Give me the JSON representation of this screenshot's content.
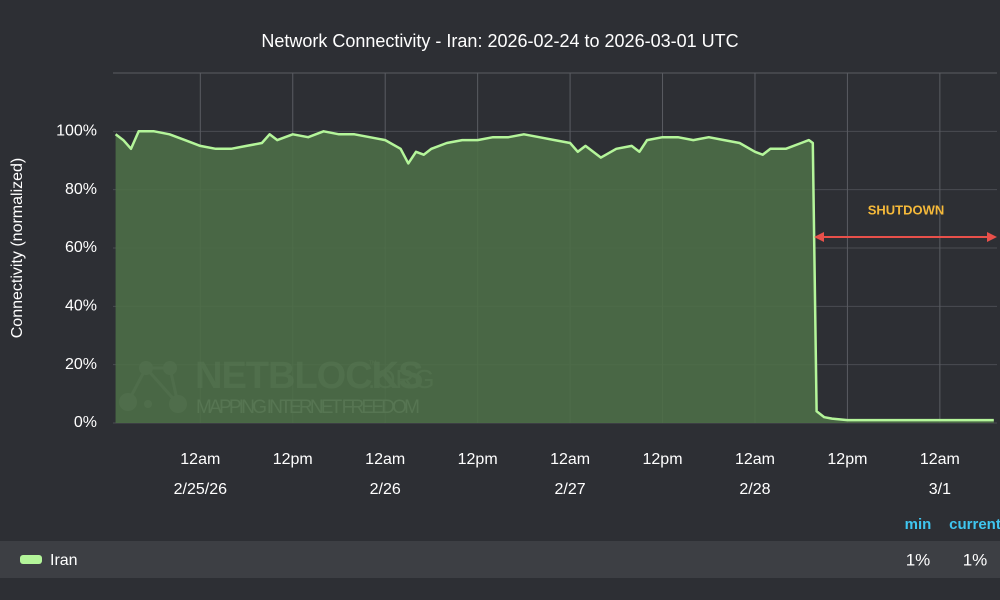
{
  "chart_data": {
    "type": "area",
    "title": "Network Connectivity - Iran: 2026-02-24 to 2026-03-01 UTC",
    "y_label": "Connectivity (normalized)",
    "x": [
      "2026-02-24T13:00",
      "2026-02-24T14:00",
      "2026-02-24T15:00",
      "2026-02-24T16:00",
      "2026-02-24T18:00",
      "2026-02-24T20:00",
      "2026-02-24T22:00",
      "2026-02-25T00:00",
      "2026-02-25T02:00",
      "2026-02-25T04:00",
      "2026-02-25T06:00",
      "2026-02-25T08:00",
      "2026-02-25T09:00",
      "2026-02-25T10:00",
      "2026-02-25T12:00",
      "2026-02-25T14:00",
      "2026-02-25T16:00",
      "2026-02-25T18:00",
      "2026-02-25T20:00",
      "2026-02-25T22:00",
      "2026-02-26T00:00",
      "2026-02-26T02:00",
      "2026-02-26T03:00",
      "2026-02-26T04:00",
      "2026-02-26T05:00",
      "2026-02-26T06:00",
      "2026-02-26T08:00",
      "2026-02-26T10:00",
      "2026-02-26T12:00",
      "2026-02-26T14:00",
      "2026-02-26T16:00",
      "2026-02-26T18:00",
      "2026-02-26T20:00",
      "2026-02-26T22:00",
      "2026-02-27T00:00",
      "2026-02-27T01:00",
      "2026-02-27T02:00",
      "2026-02-27T04:00",
      "2026-02-27T06:00",
      "2026-02-27T08:00",
      "2026-02-27T09:00",
      "2026-02-27T10:00",
      "2026-02-27T12:00",
      "2026-02-27T14:00",
      "2026-02-27T16:00",
      "2026-02-27T18:00",
      "2026-02-27T20:00",
      "2026-02-27T22:00",
      "2026-02-28T00:00",
      "2026-02-28T01:00",
      "2026-02-28T02:00",
      "2026-02-28T04:00",
      "2026-02-28T06:00",
      "2026-02-28T07:00",
      "2026-02-28T07:30",
      "2026-02-28T08:00",
      "2026-02-28T09:00",
      "2026-02-28T10:00",
      "2026-02-28T12:00",
      "2026-02-28T18:00",
      "2026-03-01T00:00",
      "2026-03-01T06:00",
      "2026-03-01T07:00"
    ],
    "series": [
      {
        "name": "Iran",
        "color": "#b4f59a",
        "fill": "#4d6e47",
        "values": [
          99,
          97,
          94,
          100,
          100,
          99,
          97,
          95,
          94,
          94,
          95,
          96,
          99,
          97,
          99,
          98,
          100,
          99,
          99,
          98,
          97,
          94,
          89,
          93,
          92,
          94,
          96,
          97,
          97,
          98,
          98,
          99,
          98,
          97,
          96,
          93,
          95,
          91,
          94,
          95,
          93,
          97,
          98,
          98,
          97,
          98,
          97,
          96,
          93,
          92,
          94,
          94,
          96,
          97,
          96,
          4,
          2,
          1.5,
          1,
          1,
          1,
          1,
          1
        ]
      }
    ],
    "xlim": [
      "2026-02-24T12:40",
      "2026-03-01T07:25"
    ],
    "xticks": [
      {
        "value": "2026-02-25T00:00",
        "label": "12am"
      },
      {
        "value": "2026-02-25T12:00",
        "label": "12pm"
      },
      {
        "value": "2026-02-26T00:00",
        "label": "12am"
      },
      {
        "value": "2026-02-26T12:00",
        "label": "12pm"
      },
      {
        "value": "2026-02-27T00:00",
        "label": "12am"
      },
      {
        "value": "2026-02-27T12:00",
        "label": "12pm"
      },
      {
        "value": "2026-02-28T00:00",
        "label": "12am"
      },
      {
        "value": "2026-02-28T12:00",
        "label": "12pm"
      },
      {
        "value": "2026-03-01T00:00",
        "label": "12am"
      }
    ],
    "xtick_dates": [
      {
        "value": "2026-02-25T00:00",
        "label": "2/25/26"
      },
      {
        "value": "2026-02-26T00:00",
        "label": "2/26"
      },
      {
        "value": "2026-02-27T00:00",
        "label": "2/27"
      },
      {
        "value": "2026-02-28T00:00",
        "label": "2/28"
      },
      {
        "value": "2026-03-01T00:00",
        "label": "3/1"
      }
    ],
    "ylim": [
      0,
      120
    ],
    "yticks": [
      {
        "value": 0,
        "label": "0%"
      },
      {
        "value": 20,
        "label": "20%"
      },
      {
        "value": 40,
        "label": "40%"
      },
      {
        "value": 60,
        "label": "60%"
      },
      {
        "value": 80,
        "label": "80%"
      },
      {
        "value": 100,
        "label": "100%"
      }
    ],
    "grid": true,
    "annotation": "SHUTDOWN",
    "watermark": {
      "name": "NETBLOCKS",
      "tm": "™",
      "suffix": ".ORG",
      "tagline": "MAPPING INTERNET FREEDOM"
    },
    "stats": [
      {
        "name": "min",
        "value": 1,
        "label": "1%"
      },
      {
        "name": "current",
        "value": 1,
        "label": "1%"
      }
    ]
  }
}
